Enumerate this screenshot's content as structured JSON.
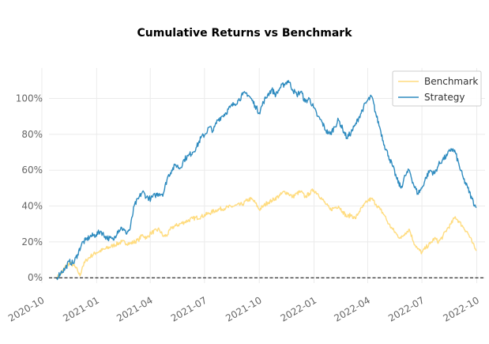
{
  "chart_data": {
    "type": "line",
    "title": "Cumulative Returns vs Benchmark",
    "xlabel": "",
    "ylabel": "",
    "x_range": [
      "2020-10-13",
      "2022-10-15"
    ],
    "ylim": [
      -0.03,
      1.17
    ],
    "y_ticks": [
      {
        "value": 0.0,
        "label": "0%"
      },
      {
        "value": 0.2,
        "label": "20%"
      },
      {
        "value": 0.4,
        "label": "40%"
      },
      {
        "value": 0.6,
        "label": "60%"
      },
      {
        "value": 0.8,
        "label": "80%"
      },
      {
        "value": 1.0,
        "label": "100%"
      }
    ],
    "x_ticks": [
      {
        "date": "2020-10-01",
        "label": "2020-10"
      },
      {
        "date": "2021-01-01",
        "label": "2021-01"
      },
      {
        "date": "2021-04-01",
        "label": "2021-04"
      },
      {
        "date": "2021-07-01",
        "label": "2021-07"
      },
      {
        "date": "2021-10-01",
        "label": "2021-10"
      },
      {
        "date": "2022-01-01",
        "label": "2022-01"
      },
      {
        "date": "2022-04-01",
        "label": "2022-04"
      },
      {
        "date": "2022-07-01",
        "label": "2022-07"
      },
      {
        "date": "2022-10-01",
        "label": "2022-10"
      }
    ],
    "grid": true,
    "reference_line": {
      "y": 0,
      "style": "dashed"
    },
    "legend": {
      "position": "top-right"
    },
    "series": [
      {
        "name": "Benchmark",
        "color": "#ffdc7f",
        "points": [
          [
            "2020-10-26",
            0.0
          ],
          [
            "2020-11-02",
            0.02
          ],
          [
            "2020-11-09",
            0.06
          ],
          [
            "2020-11-16",
            0.08
          ],
          [
            "2020-11-23",
            0.07
          ],
          [
            "2020-11-30",
            0.04
          ],
          [
            "2020-12-04",
            0.01
          ],
          [
            "2020-12-08",
            0.06
          ],
          [
            "2020-12-15",
            0.1
          ],
          [
            "2020-12-22",
            0.12
          ],
          [
            "2020-12-31",
            0.14
          ],
          [
            "2021-01-15",
            0.16
          ],
          [
            "2021-01-29",
            0.18
          ],
          [
            "2021-02-12",
            0.2
          ],
          [
            "2021-02-26",
            0.19
          ],
          [
            "2021-03-12",
            0.21
          ],
          [
            "2021-03-19",
            0.24
          ],
          [
            "2021-03-26",
            0.22
          ],
          [
            "2021-04-02",
            0.25
          ],
          [
            "2021-04-16",
            0.27
          ],
          [
            "2021-04-23",
            0.23
          ],
          [
            "2021-04-30",
            0.24
          ],
          [
            "2021-05-07",
            0.28
          ],
          [
            "2021-05-14",
            0.29
          ],
          [
            "2021-05-28",
            0.31
          ],
          [
            "2021-06-11",
            0.33
          ],
          [
            "2021-06-25",
            0.34
          ],
          [
            "2021-07-09",
            0.36
          ],
          [
            "2021-07-23",
            0.38
          ],
          [
            "2021-08-06",
            0.39
          ],
          [
            "2021-08-20",
            0.4
          ],
          [
            "2021-09-03",
            0.41
          ],
          [
            "2021-09-10",
            0.43
          ],
          [
            "2021-09-17",
            0.44
          ],
          [
            "2021-09-24",
            0.42
          ],
          [
            "2021-10-01",
            0.38
          ],
          [
            "2021-10-08",
            0.4
          ],
          [
            "2021-10-15",
            0.42
          ],
          [
            "2021-10-22",
            0.43
          ],
          [
            "2021-11-05",
            0.46
          ],
          [
            "2021-11-12",
            0.48
          ],
          [
            "2021-11-19",
            0.47
          ],
          [
            "2021-11-26",
            0.45
          ],
          [
            "2021-12-03",
            0.47
          ],
          [
            "2021-12-10",
            0.48
          ],
          [
            "2021-12-17",
            0.45
          ],
          [
            "2021-12-24",
            0.47
          ],
          [
            "2021-12-31",
            0.49
          ],
          [
            "2022-01-07",
            0.47
          ],
          [
            "2022-01-14",
            0.44
          ],
          [
            "2022-01-21",
            0.41
          ],
          [
            "2022-01-28",
            0.38
          ],
          [
            "2022-02-04",
            0.39
          ],
          [
            "2022-02-11",
            0.4
          ],
          [
            "2022-02-18",
            0.37
          ],
          [
            "2022-02-25",
            0.34
          ],
          [
            "2022-03-04",
            0.35
          ],
          [
            "2022-03-11",
            0.33
          ],
          [
            "2022-03-18",
            0.37
          ],
          [
            "2022-03-25",
            0.4
          ],
          [
            "2022-04-01",
            0.43
          ],
          [
            "2022-04-08",
            0.44
          ],
          [
            "2022-04-15",
            0.41
          ],
          [
            "2022-04-22",
            0.38
          ],
          [
            "2022-04-29",
            0.35
          ],
          [
            "2022-05-06",
            0.3
          ],
          [
            "2022-05-13",
            0.27
          ],
          [
            "2022-05-20",
            0.24
          ],
          [
            "2022-05-27",
            0.22
          ],
          [
            "2022-06-03",
            0.25
          ],
          [
            "2022-06-10",
            0.27
          ],
          [
            "2022-06-17",
            0.2
          ],
          [
            "2022-06-24",
            0.16
          ],
          [
            "2022-07-01",
            0.14
          ],
          [
            "2022-07-08",
            0.17
          ],
          [
            "2022-07-15",
            0.19
          ],
          [
            "2022-07-22",
            0.22
          ],
          [
            "2022-07-29",
            0.2
          ],
          [
            "2022-08-05",
            0.23
          ],
          [
            "2022-08-12",
            0.27
          ],
          [
            "2022-08-19",
            0.3
          ],
          [
            "2022-08-26",
            0.34
          ],
          [
            "2022-09-02",
            0.31
          ],
          [
            "2022-09-09",
            0.28
          ],
          [
            "2022-09-16",
            0.25
          ],
          [
            "2022-09-23",
            0.2
          ],
          [
            "2022-09-30",
            0.15
          ]
        ]
      },
      {
        "name": "Strategy",
        "color": "#2e8bbf",
        "points": [
          [
            "2020-10-26",
            0.0
          ],
          [
            "2020-11-02",
            0.03
          ],
          [
            "2020-11-09",
            0.05
          ],
          [
            "2020-11-16",
            0.09
          ],
          [
            "2020-11-23",
            0.08
          ],
          [
            "2020-11-30",
            0.13
          ],
          [
            "2020-12-07",
            0.19
          ],
          [
            "2020-12-14",
            0.21
          ],
          [
            "2020-12-21",
            0.23
          ],
          [
            "2020-12-31",
            0.24
          ],
          [
            "2021-01-08",
            0.26
          ],
          [
            "2021-01-15",
            0.23
          ],
          [
            "2021-01-22",
            0.22
          ],
          [
            "2021-01-29",
            0.21
          ],
          [
            "2021-02-05",
            0.26
          ],
          [
            "2021-02-12",
            0.28
          ],
          [
            "2021-02-19",
            0.25
          ],
          [
            "2021-02-26",
            0.27
          ],
          [
            "2021-03-05",
            0.4
          ],
          [
            "2021-03-12",
            0.44
          ],
          [
            "2021-03-19",
            0.48
          ],
          [
            "2021-03-26",
            0.45
          ],
          [
            "2021-04-02",
            0.44
          ],
          [
            "2021-04-09",
            0.46
          ],
          [
            "2021-04-16",
            0.47
          ],
          [
            "2021-04-23",
            0.47
          ],
          [
            "2021-04-30",
            0.56
          ],
          [
            "2021-05-07",
            0.6
          ],
          [
            "2021-05-14",
            0.63
          ],
          [
            "2021-05-21",
            0.61
          ],
          [
            "2021-05-28",
            0.66
          ],
          [
            "2021-06-04",
            0.68
          ],
          [
            "2021-06-11",
            0.7
          ],
          [
            "2021-06-18",
            0.73
          ],
          [
            "2021-06-25",
            0.78
          ],
          [
            "2021-07-02",
            0.8
          ],
          [
            "2021-07-09",
            0.84
          ],
          [
            "2021-07-16",
            0.82
          ],
          [
            "2021-07-23",
            0.88
          ],
          [
            "2021-07-30",
            0.9
          ],
          [
            "2021-08-06",
            0.92
          ],
          [
            "2021-08-13",
            0.95
          ],
          [
            "2021-08-20",
            0.97
          ],
          [
            "2021-08-27",
            0.99
          ],
          [
            "2021-09-03",
            1.02
          ],
          [
            "2021-09-10",
            1.03
          ],
          [
            "2021-09-17",
            1.0
          ],
          [
            "2021-09-24",
            0.96
          ],
          [
            "2021-10-01",
            0.92
          ],
          [
            "2021-10-08",
            0.98
          ],
          [
            "2021-10-15",
            1.02
          ],
          [
            "2021-10-22",
            1.05
          ],
          [
            "2021-10-29",
            1.02
          ],
          [
            "2021-11-05",
            1.06
          ],
          [
            "2021-11-12",
            1.08
          ],
          [
            "2021-11-19",
            1.1
          ],
          [
            "2021-11-26",
            1.05
          ],
          [
            "2021-12-03",
            1.02
          ],
          [
            "2021-12-10",
            1.04
          ],
          [
            "2021-12-17",
            0.98
          ],
          [
            "2021-12-24",
            1.0
          ],
          [
            "2021-12-31",
            0.95
          ],
          [
            "2022-01-07",
            0.9
          ],
          [
            "2022-01-14",
            0.87
          ],
          [
            "2022-01-21",
            0.82
          ],
          [
            "2022-01-28",
            0.8
          ],
          [
            "2022-02-04",
            0.84
          ],
          [
            "2022-02-11",
            0.88
          ],
          [
            "2022-02-18",
            0.83
          ],
          [
            "2022-02-25",
            0.78
          ],
          [
            "2022-03-04",
            0.81
          ],
          [
            "2022-03-11",
            0.85
          ],
          [
            "2022-03-18",
            0.9
          ],
          [
            "2022-03-25",
            0.95
          ],
          [
            "2022-04-01",
            0.99
          ],
          [
            "2022-04-08",
            1.01
          ],
          [
            "2022-04-15",
            0.91
          ],
          [
            "2022-04-22",
            0.83
          ],
          [
            "2022-04-29",
            0.74
          ],
          [
            "2022-05-06",
            0.68
          ],
          [
            "2022-05-13",
            0.62
          ],
          [
            "2022-05-20",
            0.55
          ],
          [
            "2022-05-27",
            0.5
          ],
          [
            "2022-06-03",
            0.57
          ],
          [
            "2022-06-10",
            0.6
          ],
          [
            "2022-06-17",
            0.52
          ],
          [
            "2022-06-24",
            0.47
          ],
          [
            "2022-07-01",
            0.5
          ],
          [
            "2022-07-08",
            0.56
          ],
          [
            "2022-07-15",
            0.6
          ],
          [
            "2022-07-22",
            0.58
          ],
          [
            "2022-07-29",
            0.63
          ],
          [
            "2022-08-05",
            0.66
          ],
          [
            "2022-08-12",
            0.68
          ],
          [
            "2022-08-19",
            0.72
          ],
          [
            "2022-08-26",
            0.7
          ],
          [
            "2022-09-02",
            0.62
          ],
          [
            "2022-09-09",
            0.55
          ],
          [
            "2022-09-16",
            0.5
          ],
          [
            "2022-09-23",
            0.44
          ],
          [
            "2022-09-30",
            0.39
          ]
        ]
      }
    ]
  }
}
